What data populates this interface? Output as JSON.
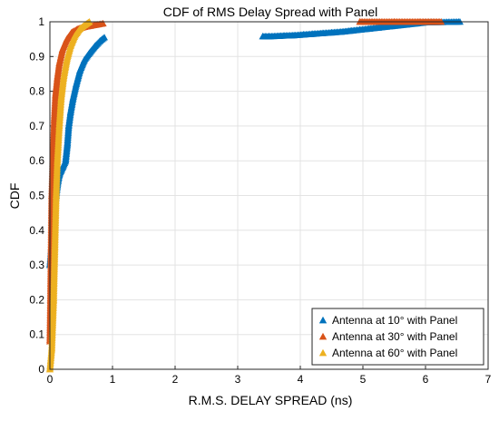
{
  "chart_data": {
    "type": "scatter",
    "title": "CDF of RMS Delay Spread with Panel",
    "xlabel": "R.M.S. DELAY SPREAD (ns)",
    "ylabel": "CDF",
    "xlim": [
      0,
      7
    ],
    "ylim": [
      0,
      1
    ],
    "xticks": [
      0,
      1,
      2,
      3,
      4,
      5,
      6,
      7
    ],
    "yticks": [
      0,
      0.1,
      0.2,
      0.3,
      0.4,
      0.5,
      0.6,
      0.7,
      0.8,
      0.9,
      1
    ],
    "grid": true,
    "legend_position": "bottom-right",
    "marker": "triangle",
    "series": [
      {
        "name": "Antenna at 10° with Panel",
        "color": "#0072BD",
        "points": [
          [
            0.0,
            0.3
          ],
          [
            0.02,
            0.34
          ],
          [
            0.04,
            0.38
          ],
          [
            0.06,
            0.42
          ],
          [
            0.08,
            0.46
          ],
          [
            0.1,
            0.5
          ],
          [
            0.12,
            0.53
          ],
          [
            0.15,
            0.56
          ],
          [
            0.2,
            0.58
          ],
          [
            0.25,
            0.6
          ],
          [
            0.28,
            0.65
          ],
          [
            0.3,
            0.7
          ],
          [
            0.33,
            0.74
          ],
          [
            0.37,
            0.78
          ],
          [
            0.42,
            0.82
          ],
          [
            0.48,
            0.86
          ],
          [
            0.55,
            0.89
          ],
          [
            0.63,
            0.91
          ],
          [
            0.72,
            0.93
          ],
          [
            0.8,
            0.945
          ],
          [
            0.87,
            0.955
          ],
          [
            3.4,
            0.958
          ],
          [
            3.5,
            0.958
          ],
          [
            3.65,
            0.959
          ],
          [
            3.75,
            0.96
          ],
          [
            3.9,
            0.961
          ],
          [
            4.05,
            0.963
          ],
          [
            4.2,
            0.965
          ],
          [
            4.35,
            0.967
          ],
          [
            4.5,
            0.969
          ],
          [
            4.65,
            0.971
          ],
          [
            4.8,
            0.974
          ],
          [
            4.95,
            0.977
          ],
          [
            5.1,
            0.98
          ],
          [
            5.25,
            0.983
          ],
          [
            5.4,
            0.986
          ],
          [
            5.55,
            0.989
          ],
          [
            5.7,
            0.992
          ],
          [
            5.85,
            0.995
          ],
          [
            6.0,
            0.998
          ],
          [
            6.55,
            1.0
          ]
        ]
      },
      {
        "name": "Antenna at 30° with Panel",
        "color": "#D95319",
        "points": [
          [
            0.0,
            0.08
          ],
          [
            0.01,
            0.2
          ],
          [
            0.02,
            0.35
          ],
          [
            0.03,
            0.5
          ],
          [
            0.05,
            0.62
          ],
          [
            0.07,
            0.72
          ],
          [
            0.09,
            0.79
          ],
          [
            0.12,
            0.84
          ],
          [
            0.15,
            0.88
          ],
          [
            0.2,
            0.92
          ],
          [
            0.27,
            0.95
          ],
          [
            0.35,
            0.97
          ],
          [
            0.45,
            0.98
          ],
          [
            0.55,
            0.985
          ],
          [
            0.7,
            0.99
          ],
          [
            0.85,
            0.995
          ],
          [
            4.95,
            1.0
          ],
          [
            5.5,
            1.0
          ],
          [
            5.9,
            1.0
          ],
          [
            6.25,
            1.0
          ]
        ]
      },
      {
        "name": "Antenna at 60° with Panel",
        "color": "#EDB120",
        "points": [
          [
            0.0,
            0.0
          ],
          [
            0.03,
            0.06
          ],
          [
            0.06,
            0.2
          ],
          [
            0.08,
            0.35
          ],
          [
            0.1,
            0.5
          ],
          [
            0.12,
            0.6
          ],
          [
            0.15,
            0.7
          ],
          [
            0.18,
            0.78
          ],
          [
            0.22,
            0.84
          ],
          [
            0.27,
            0.89
          ],
          [
            0.33,
            0.93
          ],
          [
            0.4,
            0.96
          ],
          [
            0.48,
            0.98
          ],
          [
            0.55,
            0.99
          ],
          [
            0.63,
            1.0
          ]
        ]
      }
    ]
  }
}
